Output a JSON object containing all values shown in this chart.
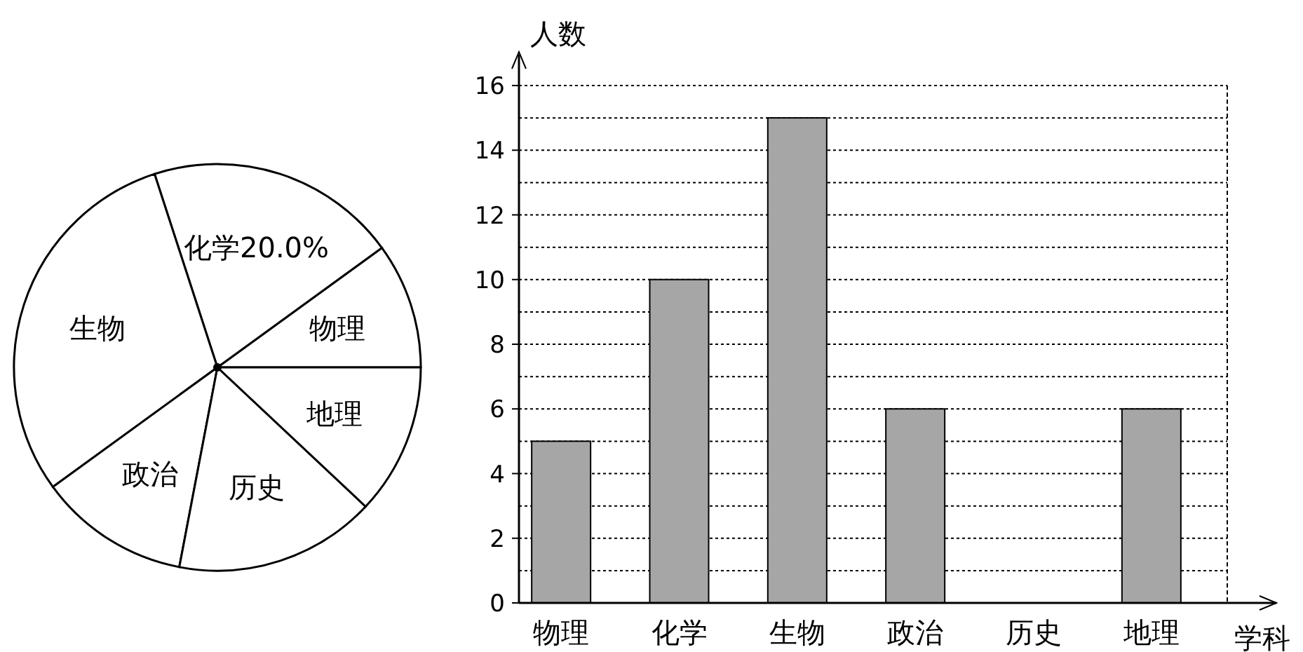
{
  "chart_data": [
    {
      "type": "pie",
      "categories": [
        "物理",
        "化学",
        "生物",
        "政治",
        "历史",
        "地理"
      ],
      "values": [
        10,
        20,
        30,
        12,
        16,
        12
      ],
      "colors": [
        "#ffffff",
        "#ffffff",
        "#ffffff",
        "#ffffff",
        "#ffffff",
        "#ffffff"
      ],
      "value_labels": [
        null,
        "20.0%",
        null,
        null,
        null,
        null
      ]
    },
    {
      "type": "bar",
      "categories": [
        "物理",
        "化学",
        "生物",
        "政治",
        "历史",
        "地理"
      ],
      "values": [
        5,
        10,
        15,
        6,
        null,
        6
      ],
      "color": "#a6a6a6",
      "xlabel": "学科",
      "ylabel": "人数",
      "ylim": [
        0,
        16
      ],
      "yticks": [
        0,
        {
          "value": 1,
          "label": null
        },
        2,
        {
          "value": 3,
          "label": null
        },
        4,
        {
          "value": 5,
          "label": null
        },
        6,
        {
          "value": 7,
          "label": null
        },
        8,
        {
          "value": 9,
          "label": null
        },
        10,
        {
          "value": 11,
          "label": null
        },
        12,
        {
          "value": 13,
          "label": null
        },
        14,
        {
          "value": 15,
          "label": null
        },
        16
      ],
      "grid": "y"
    }
  ]
}
